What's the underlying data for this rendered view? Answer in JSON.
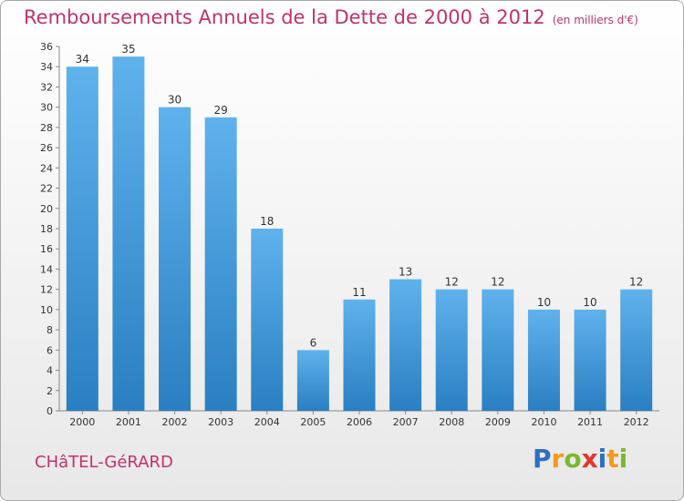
{
  "header": {
    "title": "Remboursements Annuels de la Dette de 2000 à 2012",
    "subtitle": "(en milliers d'€)"
  },
  "footer": {
    "town": "CHâTEL-GéRARD",
    "logo_letters": [
      "P",
      "r",
      "o",
      "x",
      "i",
      "t",
      "i"
    ],
    "logo_colors": [
      "#2e6fc1",
      "#f39a1f",
      "#7cb82f",
      "#e0382d",
      "#2e6fc1",
      "#f39a1f",
      "#7cb82f"
    ]
  },
  "chart_data": {
    "type": "bar",
    "title": "Remboursements Annuels de la Dette de 2000 à 2012",
    "xlabel": "",
    "ylabel": "",
    "categories": [
      "2000",
      "2001",
      "2002",
      "2003",
      "2004",
      "2005",
      "2006",
      "2007",
      "2008",
      "2009",
      "2010",
      "2011",
      "2012"
    ],
    "values": [
      34,
      35,
      30,
      29,
      18,
      6,
      11,
      13,
      12,
      12,
      10,
      10,
      12
    ],
    "value_labels": [
      "34",
      "35",
      "30",
      "29",
      "18",
      "6",
      "11",
      "13",
      "12",
      "12",
      "10",
      "10",
      "12"
    ],
    "ylim": [
      0,
      36
    ],
    "yticks": [
      0,
      2,
      4,
      6,
      8,
      10,
      12,
      14,
      16,
      18,
      20,
      22,
      24,
      26,
      28,
      30,
      32,
      34,
      36
    ],
    "ytick_labels": [
      "0",
      "2",
      "4",
      "6",
      "8",
      "10",
      "12",
      "14",
      "16",
      "18",
      "20",
      "22",
      "24",
      "26",
      "28",
      "30",
      "32",
      "34",
      "36"
    ],
    "grid": false,
    "bar_color": "#3a94d6"
  }
}
